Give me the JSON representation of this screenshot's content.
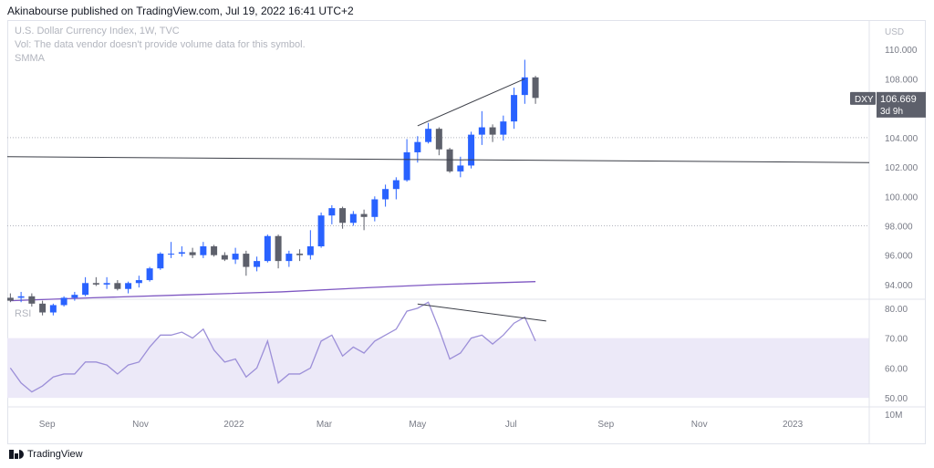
{
  "header": {
    "text": "Akinabourse published on TradingView.com, Jul 19, 2022 16:41 UTC+2"
  },
  "legend": {
    "line1": "U.S. Dollar Currency Index, 1W, TVC",
    "line2": "Vol: The data vendor doesn't provide volume data for this symbol.",
    "line3": "SMMA",
    "rsi_label": "RSI"
  },
  "footer": {
    "brand": "TradingView"
  },
  "colors": {
    "up": "#2962ff",
    "down": "#5d606b",
    "smma": "#7e57c2",
    "rsi": "#9c8fd8",
    "rsi_band": "#ece9f8"
  },
  "chart_data": [
    {
      "type": "candlestick",
      "title": "",
      "currency_label": "USD",
      "ticker": "DXY",
      "last_price": "106.669",
      "countdown": "3d 9h",
      "yticks": [
        "94.000",
        "96.000",
        "98.000",
        "100.000",
        "102.000",
        "104.000",
        "106.000",
        "108.000",
        "110.000"
      ],
      "ylim": [
        93.0,
        112.0
      ],
      "xticks": [
        "Sep",
        "Nov",
        "2022",
        "Mar",
        "May",
        "Jul",
        "Sep",
        "Nov",
        "2023"
      ],
      "xtick_dates": [
        "2021-09-01",
        "2021-11-01",
        "2022-01-01",
        "2022-03-01",
        "2022-05-01",
        "2022-07-01",
        "2022-09-01",
        "2022-11-01",
        "2023-01-01"
      ],
      "xlim": [
        "2021-08-06",
        "2023-02-20"
      ],
      "horizontal_levels": [
        104.0,
        98.0
      ],
      "candles": [
        {
          "date": "2021-08-08",
          "o": 93.1,
          "h": 93.4,
          "l": 92.8,
          "c": 92.9
        },
        {
          "date": "2021-08-15",
          "o": 93.1,
          "h": 93.5,
          "l": 92.8,
          "c": 93.2
        },
        {
          "date": "2021-08-22",
          "o": 93.2,
          "h": 93.4,
          "l": 92.5,
          "c": 92.7
        },
        {
          "date": "2021-08-29",
          "o": 92.7,
          "h": 92.9,
          "l": 91.9,
          "c": 92.1
        },
        {
          "date": "2021-09-05",
          "o": 92.1,
          "h": 92.7,
          "l": 91.9,
          "c": 92.6
        },
        {
          "date": "2021-09-12",
          "o": 92.6,
          "h": 93.2,
          "l": 92.5,
          "c": 93.1
        },
        {
          "date": "2021-09-19",
          "o": 93.1,
          "h": 93.5,
          "l": 92.9,
          "c": 93.3
        },
        {
          "date": "2021-09-26",
          "o": 93.3,
          "h": 94.5,
          "l": 93.2,
          "c": 94.1
        },
        {
          "date": "2021-10-03",
          "o": 94.1,
          "h": 94.5,
          "l": 93.9,
          "c": 94.0
        },
        {
          "date": "2021-10-10",
          "o": 94.0,
          "h": 94.5,
          "l": 93.7,
          "c": 94.1
        },
        {
          "date": "2021-10-17",
          "o": 94.1,
          "h": 94.3,
          "l": 93.6,
          "c": 93.7
        },
        {
          "date": "2021-10-24",
          "o": 93.7,
          "h": 94.2,
          "l": 93.4,
          "c": 94.1
        },
        {
          "date": "2021-10-31",
          "o": 94.1,
          "h": 94.6,
          "l": 93.8,
          "c": 94.3
        },
        {
          "date": "2021-11-07",
          "o": 94.3,
          "h": 95.2,
          "l": 94.2,
          "c": 95.1
        },
        {
          "date": "2021-11-14",
          "o": 95.1,
          "h": 96.2,
          "l": 95.0,
          "c": 96.1
        },
        {
          "date": "2021-11-21",
          "o": 96.1,
          "h": 96.9,
          "l": 95.8,
          "c": 96.1
        },
        {
          "date": "2021-11-28",
          "o": 96.1,
          "h": 96.6,
          "l": 95.9,
          "c": 96.2
        },
        {
          "date": "2021-12-05",
          "o": 96.2,
          "h": 96.5,
          "l": 95.8,
          "c": 96.0
        },
        {
          "date": "2021-12-12",
          "o": 96.0,
          "h": 96.9,
          "l": 95.8,
          "c": 96.6
        },
        {
          "date": "2021-12-19",
          "o": 96.6,
          "h": 96.7,
          "l": 95.9,
          "c": 96.0
        },
        {
          "date": "2021-12-26",
          "o": 96.0,
          "h": 96.2,
          "l": 95.6,
          "c": 95.7
        },
        {
          "date": "2022-01-02",
          "o": 95.7,
          "h": 96.5,
          "l": 95.4,
          "c": 96.1
        },
        {
          "date": "2022-01-09",
          "o": 96.1,
          "h": 96.3,
          "l": 94.6,
          "c": 95.2
        },
        {
          "date": "2022-01-16",
          "o": 95.2,
          "h": 95.9,
          "l": 94.9,
          "c": 95.6
        },
        {
          "date": "2022-01-23",
          "o": 95.6,
          "h": 97.4,
          "l": 95.5,
          "c": 97.3
        },
        {
          "date": "2022-01-30",
          "o": 97.3,
          "h": 97.4,
          "l": 95.1,
          "c": 95.6
        },
        {
          "date": "2022-02-06",
          "o": 95.6,
          "h": 96.3,
          "l": 95.2,
          "c": 96.1
        },
        {
          "date": "2022-02-13",
          "o": 96.1,
          "h": 96.4,
          "l": 95.6,
          "c": 96.0
        },
        {
          "date": "2022-02-20",
          "o": 96.0,
          "h": 97.7,
          "l": 95.7,
          "c": 96.6
        },
        {
          "date": "2022-02-27",
          "o": 96.6,
          "h": 98.9,
          "l": 96.5,
          "c": 98.7
        },
        {
          "date": "2022-03-06",
          "o": 98.7,
          "h": 99.4,
          "l": 98.1,
          "c": 99.2
        },
        {
          "date": "2022-03-13",
          "o": 99.2,
          "h": 99.3,
          "l": 97.8,
          "c": 98.2
        },
        {
          "date": "2022-03-20",
          "o": 98.2,
          "h": 99.0,
          "l": 98.0,
          "c": 98.8
        },
        {
          "date": "2022-03-27",
          "o": 98.8,
          "h": 99.1,
          "l": 97.7,
          "c": 98.6
        },
        {
          "date": "2022-04-03",
          "o": 98.6,
          "h": 100.0,
          "l": 98.3,
          "c": 99.8
        },
        {
          "date": "2022-04-10",
          "o": 99.8,
          "h": 100.8,
          "l": 99.3,
          "c": 100.5
        },
        {
          "date": "2022-04-17",
          "o": 100.5,
          "h": 101.3,
          "l": 99.8,
          "c": 101.1
        },
        {
          "date": "2022-04-24",
          "o": 101.1,
          "h": 103.9,
          "l": 101.0,
          "c": 103.0
        },
        {
          "date": "2022-05-01",
          "o": 103.0,
          "h": 104.1,
          "l": 102.3,
          "c": 103.7
        },
        {
          "date": "2022-05-08",
          "o": 103.7,
          "h": 105.0,
          "l": 103.6,
          "c": 104.6
        },
        {
          "date": "2022-05-15",
          "o": 104.6,
          "h": 104.7,
          "l": 102.8,
          "c": 103.2
        },
        {
          "date": "2022-05-22",
          "o": 103.2,
          "h": 103.3,
          "l": 101.6,
          "c": 101.7
        },
        {
          "date": "2022-05-29",
          "o": 101.7,
          "h": 102.7,
          "l": 101.3,
          "c": 102.1
        },
        {
          "date": "2022-06-05",
          "o": 102.1,
          "h": 104.4,
          "l": 101.9,
          "c": 104.2
        },
        {
          "date": "2022-06-12",
          "o": 104.2,
          "h": 105.8,
          "l": 103.5,
          "c": 104.7
        },
        {
          "date": "2022-06-19",
          "o": 104.7,
          "h": 104.9,
          "l": 103.7,
          "c": 104.2
        },
        {
          "date": "2022-06-26",
          "o": 104.2,
          "h": 105.5,
          "l": 103.8,
          "c": 105.1
        },
        {
          "date": "2022-07-03",
          "o": 105.1,
          "h": 107.4,
          "l": 104.6,
          "c": 106.9
        },
        {
          "date": "2022-07-10",
          "o": 106.9,
          "h": 109.3,
          "l": 106.3,
          "c": 108.1
        },
        {
          "date": "2022-07-17",
          "o": 108.1,
          "h": 108.2,
          "l": 106.3,
          "c": 106.7
        }
      ],
      "smma": [
        {
          "date": "2021-08-08",
          "v": 92.9
        },
        {
          "date": "2021-10-01",
          "v": 93.1
        },
        {
          "date": "2021-12-01",
          "v": 93.3
        },
        {
          "date": "2022-02-01",
          "v": 93.5
        },
        {
          "date": "2022-04-01",
          "v": 93.8
        },
        {
          "date": "2022-05-15",
          "v": 94.0
        },
        {
          "date": "2022-07-17",
          "v": 94.2
        }
      ],
      "trendlines": [
        {
          "from": {
            "date": "2021-08-06",
            "v": 102.7
          },
          "to": {
            "date": "2023-02-20",
            "v": 102.3
          }
        },
        {
          "from": {
            "date": "2022-05-01",
            "v": 104.8
          },
          "to": {
            "date": "2022-07-10",
            "v": 108.0
          }
        }
      ]
    },
    {
      "type": "line",
      "title": "RSI",
      "yticks": [
        "50.00",
        "60.00",
        "70.00",
        "80.00"
      ],
      "ylim": [
        47.0,
        83.0
      ],
      "band": [
        50,
        70
      ],
      "volume_label": "10M",
      "series": [
        {
          "values": [
            {
              "date": "2021-08-08",
              "v": 60
            },
            {
              "date": "2021-08-15",
              "v": 55
            },
            {
              "date": "2021-08-22",
              "v": 52
            },
            {
              "date": "2021-08-29",
              "v": 54
            },
            {
              "date": "2021-09-05",
              "v": 57
            },
            {
              "date": "2021-09-12",
              "v": 58
            },
            {
              "date": "2021-09-19",
              "v": 58
            },
            {
              "date": "2021-09-26",
              "v": 62
            },
            {
              "date": "2021-10-03",
              "v": 62
            },
            {
              "date": "2021-10-10",
              "v": 61
            },
            {
              "date": "2021-10-17",
              "v": 58
            },
            {
              "date": "2021-10-24",
              "v": 61
            },
            {
              "date": "2021-10-31",
              "v": 62
            },
            {
              "date": "2021-11-07",
              "v": 67
            },
            {
              "date": "2021-11-14",
              "v": 71
            },
            {
              "date": "2021-11-21",
              "v": 71
            },
            {
              "date": "2021-11-28",
              "v": 72
            },
            {
              "date": "2021-12-05",
              "v": 70
            },
            {
              "date": "2021-12-12",
              "v": 73
            },
            {
              "date": "2021-12-19",
              "v": 66
            },
            {
              "date": "2021-12-26",
              "v": 62
            },
            {
              "date": "2022-01-02",
              "v": 63
            },
            {
              "date": "2022-01-09",
              "v": 57
            },
            {
              "date": "2022-01-16",
              "v": 60
            },
            {
              "date": "2022-01-23",
              "v": 69
            },
            {
              "date": "2022-01-30",
              "v": 55
            },
            {
              "date": "2022-02-06",
              "v": 58
            },
            {
              "date": "2022-02-13",
              "v": 58
            },
            {
              "date": "2022-02-20",
              "v": 60
            },
            {
              "date": "2022-02-27",
              "v": 69
            },
            {
              "date": "2022-03-06",
              "v": 71
            },
            {
              "date": "2022-03-13",
              "v": 64
            },
            {
              "date": "2022-03-20",
              "v": 67
            },
            {
              "date": "2022-03-27",
              "v": 65
            },
            {
              "date": "2022-04-03",
              "v": 69
            },
            {
              "date": "2022-04-10",
              "v": 71
            },
            {
              "date": "2022-04-17",
              "v": 73
            },
            {
              "date": "2022-04-24",
              "v": 79
            },
            {
              "date": "2022-05-01",
              "v": 80
            },
            {
              "date": "2022-05-08",
              "v": 82
            },
            {
              "date": "2022-05-15",
              "v": 73
            },
            {
              "date": "2022-05-22",
              "v": 63
            },
            {
              "date": "2022-05-29",
              "v": 65
            },
            {
              "date": "2022-06-05",
              "v": 70
            },
            {
              "date": "2022-06-12",
              "v": 71
            },
            {
              "date": "2022-06-19",
              "v": 68
            },
            {
              "date": "2022-06-26",
              "v": 71
            },
            {
              "date": "2022-07-03",
              "v": 75
            },
            {
              "date": "2022-07-10",
              "v": 77
            },
            {
              "date": "2022-07-17",
              "v": 69
            }
          ]
        }
      ],
      "trendline": {
        "from": {
          "date": "2022-05-01",
          "v": 81.4
        },
        "to": {
          "date": "2022-07-24",
          "v": 75.7
        }
      }
    }
  ]
}
